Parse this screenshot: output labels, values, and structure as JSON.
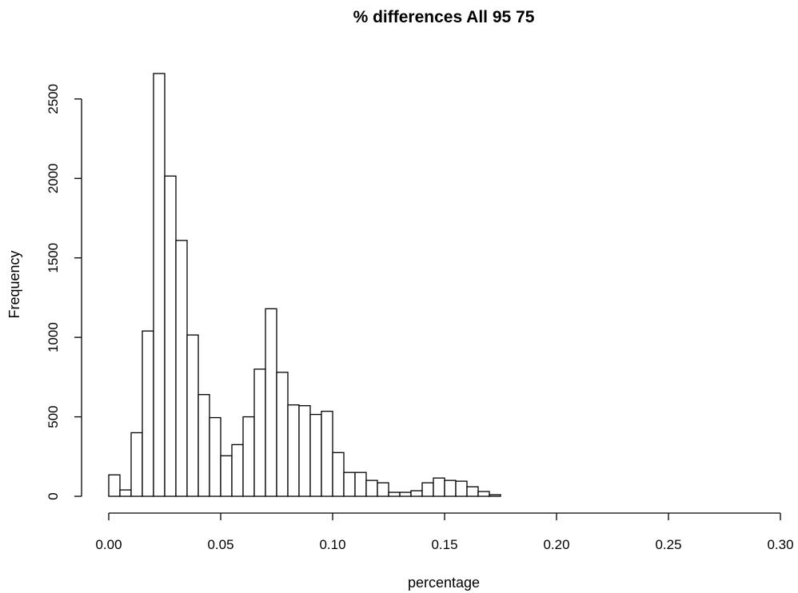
{
  "chart_data": {
    "type": "bar",
    "title": "% differences All 95 75",
    "xlabel": "percentage",
    "ylabel": "Frequency",
    "bin_width": 0.005,
    "x_start": 0.0,
    "xlim": [
      0,
      0.3
    ],
    "ylim": [
      0,
      2660
    ],
    "x_ticks": [
      "0.00",
      "0.05",
      "0.10",
      "0.15",
      "0.20",
      "0.25",
      "0.30"
    ],
    "y_ticks": [
      "0",
      "500",
      "1000",
      "1500",
      "2000",
      "2500"
    ],
    "values": [
      135,
      40,
      400,
      1040,
      2660,
      2015,
      1610,
      1015,
      640,
      495,
      255,
      325,
      500,
      800,
      1180,
      780,
      575,
      570,
      515,
      535,
      275,
      150,
      150,
      100,
      85,
      25,
      25,
      35,
      85,
      115,
      100,
      95,
      60,
      30,
      10
    ],
    "grid": false,
    "legend": "none"
  }
}
